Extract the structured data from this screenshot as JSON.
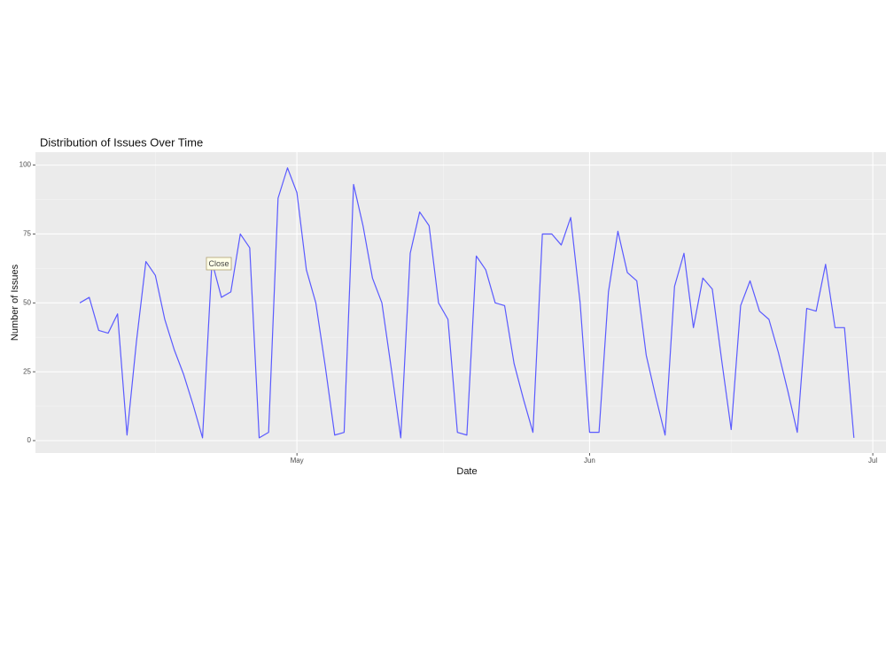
{
  "chart_data": {
    "type": "line",
    "title": "Distribution of Issues Over Time",
    "x_label": "Date",
    "y_label": "Number of Issues",
    "tooltip": "Close",
    "x": [
      7,
      8,
      9,
      10,
      11,
      12,
      13,
      14,
      15,
      16,
      17,
      18,
      19,
      20,
      21,
      22,
      23,
      24,
      25,
      26,
      27,
      28,
      29,
      30,
      31,
      32,
      33,
      34,
      35,
      36,
      37,
      38,
      39,
      40,
      41,
      42,
      43,
      44,
      45,
      46,
      47,
      48,
      49,
      50,
      51,
      52,
      53,
      54,
      55,
      56,
      57,
      58,
      59,
      60,
      61,
      62,
      63,
      64,
      65,
      66,
      67,
      68,
      69,
      70,
      71,
      72,
      73,
      74,
      75,
      76,
      77,
      78,
      79,
      80,
      81,
      82,
      83,
      84,
      85,
      86,
      87,
      88,
      89
    ],
    "values": [
      50,
      52,
      40,
      39,
      46,
      2,
      36,
      65,
      60,
      44,
      33,
      24,
      13,
      1,
      65,
      52,
      54,
      75,
      70,
      1,
      3,
      88,
      99,
      90,
      62,
      50,
      27,
      2,
      3,
      93,
      78,
      59,
      50,
      26,
      1,
      68,
      83,
      78,
      50,
      44,
      3,
      2,
      67,
      62,
      50,
      49,
      28,
      15,
      3,
      75,
      75,
      71,
      81,
      50,
      3,
      3,
      54,
      76,
      61,
      58,
      31,
      16,
      2,
      56,
      68,
      41,
      59,
      55,
      29,
      4,
      49,
      58,
      47,
      44,
      32,
      18,
      3,
      48,
      47,
      64,
      41,
      41,
      1
    ],
    "color": "#5a5aff",
    "xlim": [
      2.3,
      92.4
    ],
    "xticks": [
      {
        "value": 30,
        "label": "May"
      },
      {
        "value": 61,
        "label": "Jun"
      },
      {
        "value": 91,
        "label": "Jul"
      }
    ],
    "x_minor_breaks": [
      15,
      45.5,
      76
    ],
    "ylim": [
      -4.5,
      104.7
    ],
    "yticks": [
      0,
      25,
      50,
      75,
      100
    ],
    "y_minor_breaks": [
      12.5,
      37.5,
      62.5,
      87.5
    ],
    "grid": true
  }
}
